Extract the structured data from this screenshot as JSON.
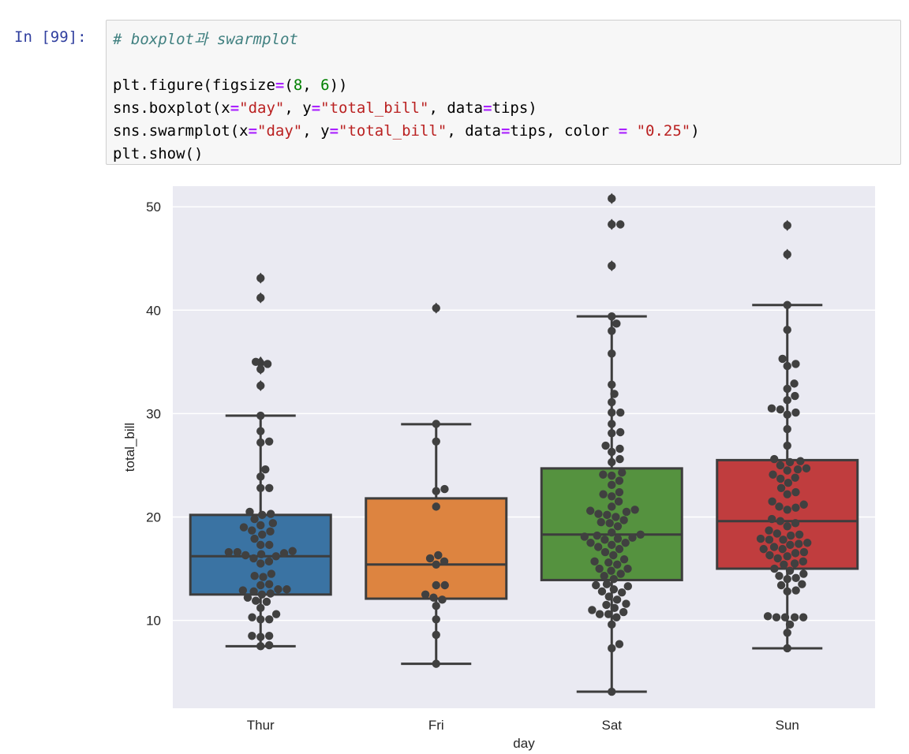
{
  "cell": {
    "prompt": "In [99]:",
    "code_lines": [
      [
        {
          "t": "# boxplot과 swarmplot",
          "c": "comment"
        }
      ],
      [],
      [
        {
          "t": "plt.figure(figsize"
        },
        {
          "t": "=",
          "c": "op"
        },
        {
          "t": "("
        },
        {
          "t": "8",
          "c": "num"
        },
        {
          "t": ", "
        },
        {
          "t": "6",
          "c": "num"
        },
        {
          "t": "))"
        }
      ],
      [
        {
          "t": "sns.boxplot(x"
        },
        {
          "t": "=",
          "c": "op"
        },
        {
          "t": "\"day\"",
          "c": "str"
        },
        {
          "t": ", y"
        },
        {
          "t": "=",
          "c": "op"
        },
        {
          "t": "\"total_bill\"",
          "c": "str"
        },
        {
          "t": ", data"
        },
        {
          "t": "=",
          "c": "op"
        },
        {
          "t": "tips)"
        }
      ],
      [
        {
          "t": "sns.swarmplot(x"
        },
        {
          "t": "=",
          "c": "op"
        },
        {
          "t": "\"day\"",
          "c": "str"
        },
        {
          "t": ", y"
        },
        {
          "t": "=",
          "c": "op"
        },
        {
          "t": "\"total_bill\"",
          "c": "str"
        },
        {
          "t": ", data"
        },
        {
          "t": "=",
          "c": "op"
        },
        {
          "t": "tips, color "
        },
        {
          "t": "=",
          "c": "op"
        },
        {
          "t": " "
        },
        {
          "t": "\"0.25\"",
          "c": "str"
        },
        {
          "t": ")"
        }
      ],
      [
        {
          "t": "plt.show()"
        }
      ]
    ]
  },
  "chart_data": {
    "type": "box+swarm",
    "title": "",
    "xlabel": "day",
    "ylabel": "total_bill",
    "ylim": [
      1.5,
      52
    ],
    "yticks": [
      10,
      20,
      30,
      40,
      50
    ],
    "categories": [
      "Thur",
      "Fri",
      "Sat",
      "Sun"
    ],
    "colors": {
      "Thur": "#3a73a3",
      "Fri": "#dd8440",
      "Sat": "#55923f",
      "Sun": "#c03d3e"
    },
    "background": "#eaeaf2",
    "line_color": "#3d3d3d",
    "point_color": "#404040",
    "boxes": [
      {
        "category": "Thur",
        "whisker_low": 7.5,
        "q1": 12.5,
        "median": 16.2,
        "q3": 20.2,
        "whisker_high": 29.8,
        "outliers": [
          32.7,
          34.3,
          34.8,
          35.0,
          41.2,
          43.1
        ]
      },
      {
        "category": "Fri",
        "whisker_low": 5.8,
        "q1": 12.1,
        "median": 15.4,
        "q3": 21.8,
        "whisker_high": 28.97,
        "outliers": [
          40.2
        ]
      },
      {
        "category": "Sat",
        "whisker_low": 3.1,
        "q1": 13.9,
        "median": 18.3,
        "q3": 24.7,
        "whisker_high": 39.4,
        "outliers": [
          44.3,
          48.3,
          48.3,
          50.8
        ]
      },
      {
        "category": "Sun",
        "whisker_low": 7.3,
        "q1": 15.0,
        "median": 19.6,
        "q3": 25.5,
        "whisker_high": 40.5,
        "outliers": [
          45.4,
          48.2
        ]
      }
    ],
    "points": {
      "Thur": [
        7.5,
        7.6,
        8.4,
        8.5,
        8.5,
        10.1,
        10.1,
        10.3,
        10.6,
        11.2,
        11.8,
        11.9,
        12.2,
        12.5,
        12.6,
        12.8,
        12.9,
        13.0,
        13.0,
        13.4,
        13.5,
        14.2,
        14.3,
        14.5,
        15.5,
        15.7,
        16.0,
        16.2,
        16.3,
        16.4,
        16.5,
        16.6,
        16.6,
        16.7,
        17.3,
        17.3,
        17.9,
        18.3,
        18.6,
        18.7,
        19.0,
        19.2,
        19.4,
        19.8,
        20.2,
        20.3,
        20.5,
        22.8,
        22.8,
        23.9,
        24.6,
        27.2,
        27.3,
        28.3,
        29.8,
        32.7,
        34.3,
        34.8,
        35.0,
        41.2,
        43.1
      ],
      "Fri": [
        5.8,
        8.6,
        10.1,
        11.4,
        12.0,
        12.2,
        12.5,
        13.4,
        13.4,
        15.4,
        15.7,
        16.0,
        16.3,
        21.0,
        22.5,
        22.7,
        27.3,
        29.0,
        40.2
      ],
      "Sat": [
        3.1,
        7.3,
        7.7,
        9.6,
        10.3,
        10.6,
        10.6,
        10.8,
        11.0,
        11.2,
        11.5,
        11.6,
        12.0,
        12.3,
        12.7,
        12.8,
        13.0,
        13.3,
        13.4,
        13.5,
        14.0,
        14.3,
        14.5,
        14.8,
        15.0,
        15.0,
        15.4,
        15.6,
        15.7,
        15.9,
        16.3,
        16.6,
        16.9,
        17.1,
        17.3,
        17.5,
        17.5,
        17.8,
        17.9,
        18.0,
        18.1,
        18.2,
        18.3,
        18.5,
        19.1,
        19.4,
        19.5,
        19.7,
        20.0,
        20.2,
        20.3,
        20.5,
        20.6,
        20.7,
        21.0,
        21.5,
        22.0,
        22.2,
        22.4,
        23.1,
        23.5,
        24.0,
        24.1,
        24.3,
        25.3,
        25.6,
        26.3,
        26.6,
        26.9,
        28.1,
        28.2,
        29.0,
        30.1,
        30.1,
        31.1,
        31.9,
        32.8,
        35.8,
        38.0,
        38.7,
        39.4,
        44.3,
        48.3,
        48.3,
        50.8
      ],
      "Sun": [
        7.3,
        8.8,
        9.6,
        10.3,
        10.3,
        10.3,
        10.3,
        10.4,
        12.8,
        12.9,
        13.4,
        13.5,
        14.0,
        14.1,
        14.3,
        14.5,
        14.8,
        15.0,
        15.4,
        15.5,
        15.7,
        16.0,
        16.2,
        16.3,
        16.5,
        16.6,
        16.9,
        16.9,
        17.1,
        17.3,
        17.4,
        17.5,
        17.8,
        17.8,
        17.9,
        18.2,
        18.3,
        18.4,
        18.7,
        19.1,
        19.4,
        19.6,
        19.8,
        20.7,
        20.9,
        21.0,
        21.2,
        21.5,
        22.2,
        22.4,
        22.8,
        23.3,
        23.7,
        23.8,
        24.1,
        24.5,
        24.6,
        24.7,
        25.0,
        25.3,
        25.4,
        25.6,
        26.9,
        28.5,
        29.9,
        30.1,
        30.4,
        30.5,
        31.3,
        31.7,
        32.4,
        32.9,
        34.6,
        34.8,
        35.3,
        38.1,
        40.5,
        45.4,
        48.2
      ]
    }
  }
}
